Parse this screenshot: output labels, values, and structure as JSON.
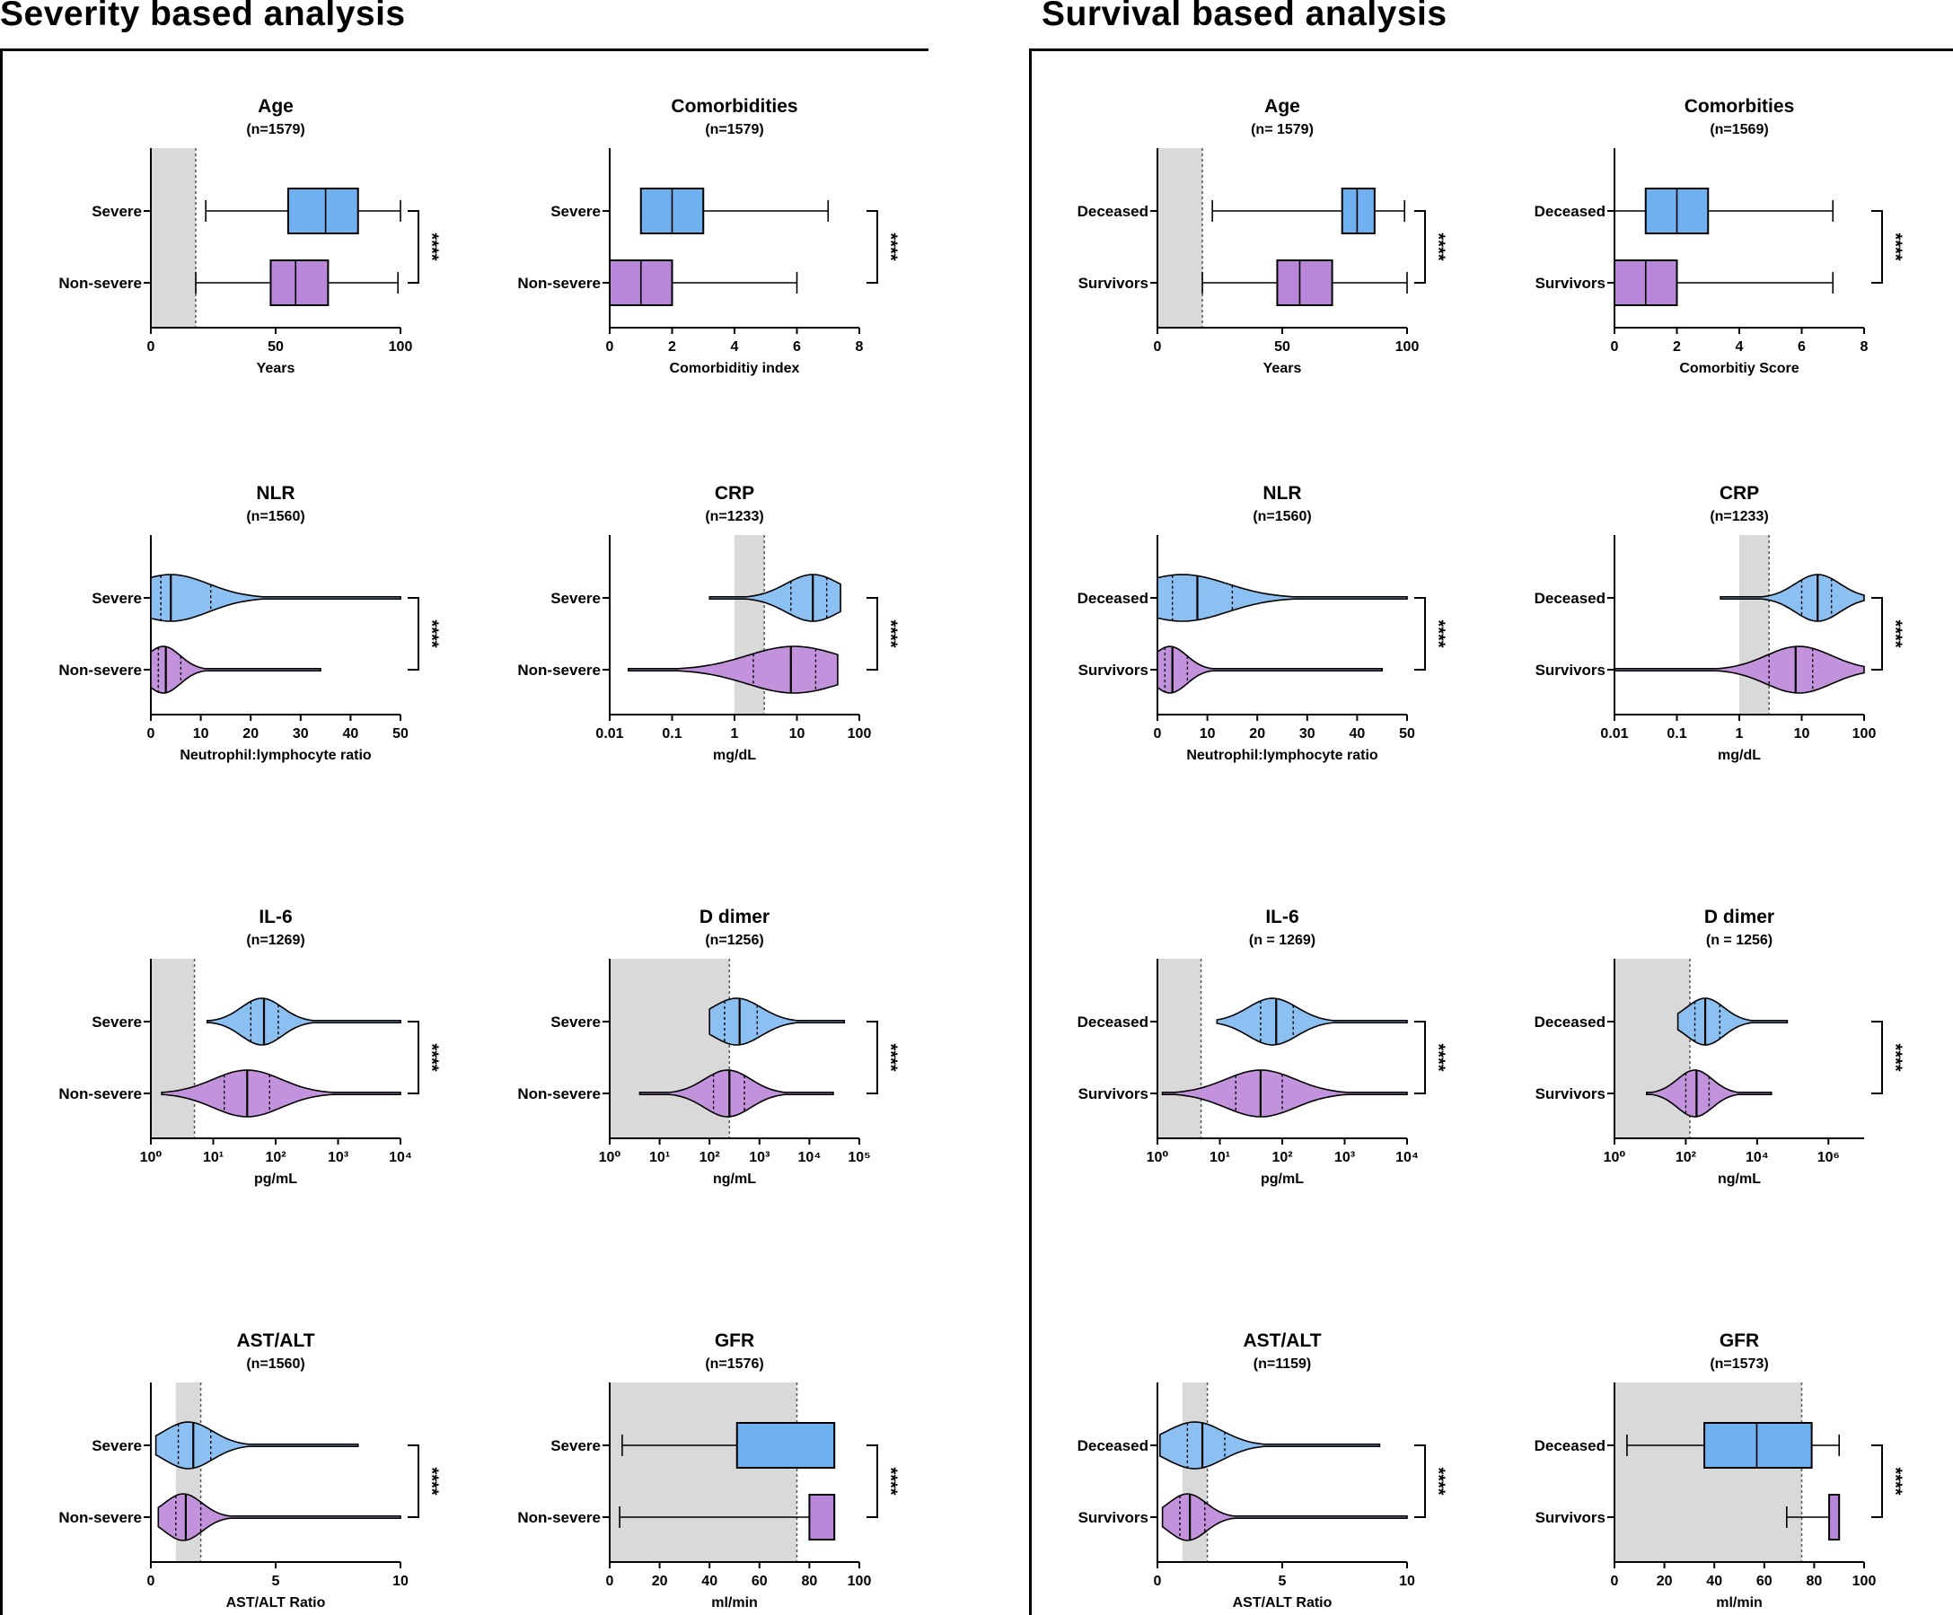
{
  "sections": [
    {
      "title": "Severity based analysis",
      "ref_label": "Severe",
      "cmp_label": "Non-severe"
    },
    {
      "title": "Survival based analysis",
      "ref_label": "Deceased",
      "cmp_label": "Survivors"
    }
  ],
  "colors": {
    "blue": "#8dc0f2",
    "blue_box": "#6fb0f1",
    "purple": "#c392dc",
    "purple_box": "#b887d9",
    "shade": "#d9d9d9"
  },
  "chart_data": [
    {
      "id": "sev-age",
      "type": "boxplot",
      "title": "Age",
      "n": "(n=1579)",
      "xlabel": "Years",
      "scale": "linear",
      "xlim": [
        0,
        100
      ],
      "ticks": [
        0,
        50,
        100
      ],
      "tick_labels": [
        "0",
        "50",
        "100"
      ],
      "shade": [
        0,
        18
      ],
      "significance": "****",
      "series": [
        {
          "name": "Severe",
          "whisker": [
            22,
            100
          ],
          "q": [
            55,
            70,
            83
          ],
          "color": "blue"
        },
        {
          "name": "Non-severe",
          "whisker": [
            18,
            99
          ],
          "q": [
            48,
            58,
            71
          ],
          "color": "purple"
        }
      ]
    },
    {
      "id": "sev-comorb",
      "type": "boxplot",
      "title": "Comorbidities",
      "n": "(n=1579)",
      "xlabel": "Comorbiditiy index",
      "scale": "linear",
      "xlim": [
        0,
        8
      ],
      "ticks": [
        0,
        2,
        4,
        6,
        8
      ],
      "tick_labels": [
        "0",
        "2",
        "4",
        "6",
        "8"
      ],
      "significance": "****",
      "series": [
        {
          "name": "Severe",
          "whisker": [
            1,
            7
          ],
          "q": [
            1,
            2,
            3
          ],
          "color": "blue"
        },
        {
          "name": "Non-severe",
          "whisker": [
            0,
            6
          ],
          "q": [
            0,
            1,
            2
          ],
          "color": "purple"
        }
      ]
    },
    {
      "id": "sev-nlr",
      "type": "violin",
      "title": "NLR",
      "n": "(n=1560)",
      "xlabel": "Neutrophil:lymphocyte ratio",
      "scale": "linear",
      "xlim": [
        0,
        50
      ],
      "ticks": [
        0,
        10,
        20,
        30,
        40,
        50
      ],
      "tick_labels": [
        "0",
        "10",
        "20",
        "30",
        "40",
        "50"
      ],
      "significance": "****",
      "series": [
        {
          "name": "Severe",
          "range": [
            0,
            50
          ],
          "quartiles": [
            2,
            4,
            12
          ],
          "mode": 4,
          "color": "blue"
        },
        {
          "name": "Non-severe",
          "range": [
            0,
            34
          ],
          "quartiles": [
            1.5,
            3,
            6
          ],
          "mode": 2.5,
          "color": "purple"
        }
      ]
    },
    {
      "id": "sev-crp",
      "type": "violin",
      "title": "CRP",
      "n": "(n=1233)",
      "xlabel": "mg/dL",
      "scale": "log",
      "xlim": [
        0.01,
        100
      ],
      "ticks": [
        0.01,
        0.1,
        1,
        10,
        100
      ],
      "tick_labels": [
        "0.01",
        "0.1",
        "1",
        "10",
        "100"
      ],
      "shade": [
        1,
        3
      ],
      "significance": "****",
      "series": [
        {
          "name": "Severe",
          "range": [
            0.4,
            50
          ],
          "quartiles": [
            8,
            18,
            30
          ],
          "mode": 18,
          "color": "blue"
        },
        {
          "name": "Non-severe",
          "range": [
            0.02,
            45
          ],
          "quartiles": [
            2,
            8,
            20
          ],
          "mode": 9,
          "color": "purple"
        }
      ]
    },
    {
      "id": "sev-il6",
      "type": "violin",
      "title": "IL-6",
      "n": "(n=1269)",
      "xlabel": "pg/mL",
      "scale": "log",
      "xlim": [
        1,
        10000
      ],
      "ticks": [
        1,
        10,
        100,
        1000,
        10000
      ],
      "tick_labels": [
        "10⁰",
        "10¹",
        "10²",
        "10³",
        "10⁴"
      ],
      "shade": [
        1,
        5
      ],
      "significance": "****",
      "series": [
        {
          "name": "Severe",
          "range": [
            8,
            10000
          ],
          "quartiles": [
            40,
            65,
            110
          ],
          "mode": 60,
          "color": "blue"
        },
        {
          "name": "Non-severe",
          "range": [
            1.5,
            10000
          ],
          "quartiles": [
            15,
            35,
            80
          ],
          "mode": 35,
          "color": "purple"
        }
      ]
    },
    {
      "id": "sev-ddimer",
      "type": "violin",
      "title": "D dimer",
      "n": "(n=1256)",
      "xlabel": "ng/mL",
      "scale": "log",
      "xlim": [
        1,
        100000
      ],
      "ticks": [
        1,
        10,
        100,
        1000,
        10000,
        100000
      ],
      "tick_labels": [
        "10⁰",
        "10¹",
        "10²",
        "10³",
        "10⁴",
        "10⁵"
      ],
      "shade": [
        1,
        250
      ],
      "significance": "****",
      "series": [
        {
          "name": "Severe",
          "range": [
            100,
            50000
          ],
          "quartiles": [
            200,
            400,
            900
          ],
          "mode": 350,
          "color": "blue"
        },
        {
          "name": "Non-severe",
          "range": [
            4,
            30000
          ],
          "quartiles": [
            120,
            250,
            500
          ],
          "mode": 230,
          "color": "purple"
        }
      ]
    },
    {
      "id": "sev-astalt",
      "type": "violin",
      "title": "AST/ALT",
      "n": "(n=1560)",
      "xlabel": "AST/ALT Ratio",
      "scale": "linear",
      "xlim": [
        0,
        10
      ],
      "ticks": [
        0,
        5,
        10
      ],
      "tick_labels": [
        "0",
        "5",
        "10"
      ],
      "shade": [
        1,
        2
      ],
      "significance": "****",
      "series": [
        {
          "name": "Severe",
          "range": [
            0.2,
            8.3
          ],
          "quartiles": [
            1.1,
            1.7,
            2.4
          ],
          "mode": 1.5,
          "color": "blue"
        },
        {
          "name": "Non-severe",
          "range": [
            0.3,
            10
          ],
          "quartiles": [
            1.0,
            1.4,
            2.0
          ],
          "mode": 1.3,
          "color": "purple"
        }
      ]
    },
    {
      "id": "sev-gfr",
      "type": "boxplot",
      "title": "GFR",
      "n": "(n=1576)",
      "xlabel": "ml/min",
      "scale": "linear",
      "xlim": [
        0,
        100
      ],
      "ticks": [
        0,
        20,
        40,
        60,
        80,
        100
      ],
      "tick_labels": [
        "0",
        "20",
        "40",
        "60",
        "80",
        "100"
      ],
      "shade": [
        0,
        75
      ],
      "significance": "****",
      "series": [
        {
          "name": "Severe",
          "whisker": [
            5,
            90
          ],
          "q": [
            51,
            90,
            90
          ],
          "color": "blue"
        },
        {
          "name": "Non-severe",
          "whisker": [
            4,
            90
          ],
          "q": [
            80,
            90,
            90
          ],
          "color": "purple"
        }
      ]
    },
    {
      "id": "sur-age",
      "type": "boxplot",
      "title": "Age",
      "n": "(n= 1579)",
      "xlabel": "Years",
      "scale": "linear",
      "xlim": [
        0,
        100
      ],
      "ticks": [
        0,
        50,
        100
      ],
      "tick_labels": [
        "0",
        "50",
        "100"
      ],
      "shade": [
        0,
        18
      ],
      "significance": "****",
      "series": [
        {
          "name": "Deceased",
          "whisker": [
            22,
            99
          ],
          "q": [
            74,
            80,
            87
          ],
          "color": "blue"
        },
        {
          "name": "Survivors",
          "whisker": [
            18,
            100
          ],
          "q": [
            48,
            57,
            70
          ],
          "color": "purple"
        }
      ]
    },
    {
      "id": "sur-comorb",
      "type": "boxplot",
      "title": "Comorbities",
      "n": "(n=1569)",
      "xlabel": "Comorbitiy Score",
      "scale": "linear",
      "xlim": [
        0,
        8
      ],
      "ticks": [
        0,
        2,
        4,
        6,
        8
      ],
      "tick_labels": [
        "0",
        "2",
        "4",
        "6",
        "8"
      ],
      "significance": "****",
      "series": [
        {
          "name": "Deceased",
          "whisker": [
            0,
            7
          ],
          "q": [
            1,
            2,
            3
          ],
          "color": "blue"
        },
        {
          "name": "Survivors",
          "whisker": [
            0,
            7
          ],
          "q": [
            0,
            1,
            2
          ],
          "color": "purple"
        }
      ]
    },
    {
      "id": "sur-nlr",
      "type": "violin",
      "title": "NLR",
      "n": "(n=1560)",
      "xlabel": "Neutrophil:lymphocyte ratio",
      "scale": "linear",
      "xlim": [
        0,
        50
      ],
      "ticks": [
        0,
        10,
        20,
        30,
        40,
        50
      ],
      "tick_labels": [
        "0",
        "10",
        "20",
        "30",
        "40",
        "50"
      ],
      "significance": "****",
      "series": [
        {
          "name": "Deceased",
          "range": [
            0,
            50
          ],
          "quartiles": [
            3,
            8,
            15
          ],
          "mode": 5,
          "color": "blue"
        },
        {
          "name": "Survivors",
          "range": [
            0,
            45
          ],
          "quartiles": [
            1.5,
            3,
            6
          ],
          "mode": 2.5,
          "color": "purple"
        }
      ]
    },
    {
      "id": "sur-crp",
      "type": "violin",
      "title": "CRP",
      "n": "(n=1233)",
      "xlabel": "mg/dL",
      "scale": "log",
      "xlim": [
        0.01,
        100
      ],
      "ticks": [
        0.01,
        0.1,
        1,
        10,
        100
      ],
      "tick_labels": [
        "0.01",
        "0.1",
        "1",
        "10",
        "100"
      ],
      "shade": [
        1,
        3
      ],
      "significance": "****",
      "series": [
        {
          "name": "Deceased",
          "range": [
            0.5,
            100
          ],
          "quartiles": [
            10,
            18,
            30
          ],
          "mode": 18,
          "color": "blue"
        },
        {
          "name": "Survivors",
          "range": [
            0.01,
            100
          ],
          "quartiles": [
            3,
            8,
            15
          ],
          "mode": 9,
          "color": "purple"
        }
      ]
    },
    {
      "id": "sur-il6",
      "type": "violin",
      "title": "IL-6",
      "n": "(n = 1269)",
      "xlabel": "pg/mL",
      "scale": "log",
      "xlim": [
        1,
        10000
      ],
      "ticks": [
        1,
        10,
        100,
        1000,
        10000
      ],
      "tick_labels": [
        "10⁰",
        "10¹",
        "10²",
        "10³",
        "10⁴"
      ],
      "shade": [
        1,
        5
      ],
      "significance": "****",
      "series": [
        {
          "name": "Deceased",
          "range": [
            9,
            10000
          ],
          "quartiles": [
            45,
            80,
            150
          ],
          "mode": 70,
          "color": "blue"
        },
        {
          "name": "Survivors",
          "range": [
            1.2,
            10000
          ],
          "quartiles": [
            18,
            45,
            100
          ],
          "mode": 45,
          "color": "purple"
        }
      ]
    },
    {
      "id": "sur-ddimer",
      "type": "violin",
      "title": "D dimer",
      "n": "(n = 1256)",
      "xlabel": "ng/mL",
      "scale": "log",
      "xlim": [
        1,
        10000000
      ],
      "ticks": [
        1,
        100,
        10000,
        1000000
      ],
      "tick_labels": [
        "10⁰",
        "10²",
        "10⁴",
        "10⁶"
      ],
      "shade": [
        1,
        130
      ],
      "significance": "****",
      "series": [
        {
          "name": "Deceased",
          "range": [
            60,
            70000
          ],
          "quartiles": [
            180,
            350,
            900
          ],
          "mode": 350,
          "color": "blue"
        },
        {
          "name": "Survivors",
          "range": [
            8,
            25000
          ],
          "quartiles": [
            100,
            200,
            450
          ],
          "mode": 180,
          "color": "purple"
        }
      ]
    },
    {
      "id": "sur-astalt",
      "type": "violin",
      "title": "AST/ALT",
      "n": "(n=1159)",
      "xlabel": "AST/ALT Ratio",
      "scale": "linear",
      "xlim": [
        0,
        10
      ],
      "ticks": [
        0,
        5,
        10
      ],
      "tick_labels": [
        "0",
        "5",
        "10"
      ],
      "shade": [
        1,
        2
      ],
      "significance": "****",
      "series": [
        {
          "name": "Deceased",
          "range": [
            0.1,
            8.9
          ],
          "quartiles": [
            1.2,
            1.8,
            2.7
          ],
          "mode": 1.5,
          "color": "blue"
        },
        {
          "name": "Survivors",
          "range": [
            0.2,
            10
          ],
          "quartiles": [
            0.9,
            1.3,
            1.9
          ],
          "mode": 1.2,
          "color": "purple"
        }
      ]
    },
    {
      "id": "sur-gfr",
      "type": "boxplot",
      "title": "GFR",
      "n": "(n=1573)",
      "xlabel": "ml/min",
      "scale": "linear",
      "xlim": [
        0,
        100
      ],
      "ticks": [
        0,
        20,
        40,
        60,
        80,
        100
      ],
      "tick_labels": [
        "0",
        "20",
        "40",
        "60",
        "80",
        "100"
      ],
      "shade": [
        0,
        75
      ],
      "significance": "****",
      "series": [
        {
          "name": "Deceased",
          "whisker": [
            5,
            90
          ],
          "q": [
            36,
            57,
            79
          ],
          "color": "blue"
        },
        {
          "name": "Survivors",
          "whisker": [
            69,
            90
          ],
          "q": [
            86,
            90,
            90
          ],
          "color": "purple"
        }
      ]
    }
  ]
}
